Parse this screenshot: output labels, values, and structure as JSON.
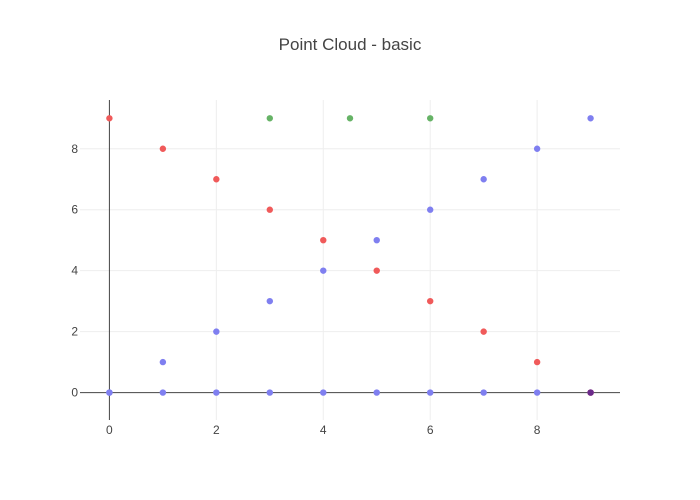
{
  "chart_data": {
    "type": "scatter",
    "title": "Point Cloud - basic",
    "xlabel": "",
    "ylabel": "",
    "xlim": [
      -0.55,
      9.55
    ],
    "ylim": [
      -0.9,
      9.6
    ],
    "x_ticks": [
      0,
      2,
      4,
      6,
      8
    ],
    "y_ticks": [
      0,
      2,
      4,
      6,
      8
    ],
    "grid": true,
    "legend": "none",
    "series": [
      {
        "color": "#7f7ff0",
        "x": [
          0,
          1,
          2,
          3,
          4,
          5,
          6,
          7,
          8,
          9,
          0,
          1,
          2,
          3,
          4,
          5,
          6,
          7,
          8,
          9
        ],
        "y": [
          0,
          1,
          2,
          3,
          4,
          5,
          6,
          7,
          8,
          9,
          0,
          0,
          0,
          0,
          0,
          0,
          0,
          0,
          0,
          0
        ]
      },
      {
        "color": "#f05a5a",
        "x": [
          0,
          1,
          2,
          3,
          4,
          5,
          6,
          7,
          8,
          9
        ],
        "y": [
          9,
          8,
          7,
          6,
          5,
          4,
          3,
          2,
          1,
          0
        ]
      },
      {
        "color": "#66b366",
        "x": [
          3,
          4.5,
          6
        ],
        "y": [
          9,
          9,
          9
        ]
      },
      {
        "color": "#6a2a8a",
        "x": [
          9
        ],
        "y": [
          0
        ]
      }
    ]
  }
}
